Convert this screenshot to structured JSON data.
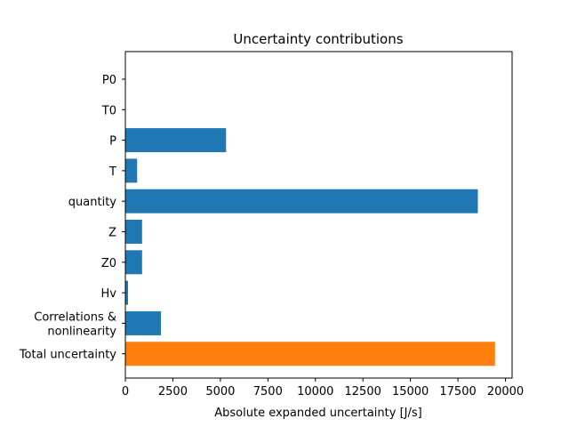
{
  "chart_data": {
    "type": "bar",
    "orientation": "horizontal",
    "title": "Uncertainty contributions",
    "xlabel": "Absolute expanded uncertainty [J/s]",
    "ylabel": "",
    "xlim": [
      0,
      20350
    ],
    "xticks": [
      0,
      2500,
      5000,
      7500,
      10000,
      12500,
      15000,
      17500,
      20000
    ],
    "categories": [
      "P0",
      "T0",
      "P",
      "T",
      "quantity",
      "Z",
      "Z0",
      "Hv",
      "Correlations &\nnonlinearity",
      "Total uncertainty"
    ],
    "values": [
      0,
      0,
      5300,
      620,
      18550,
      880,
      880,
      140,
      1870,
      19450
    ],
    "colors": [
      "#1f77b4",
      "#1f77b4",
      "#1f77b4",
      "#1f77b4",
      "#1f77b4",
      "#1f77b4",
      "#1f77b4",
      "#1f77b4",
      "#1f77b4",
      "#ff7f0e"
    ],
    "grid": false
  }
}
